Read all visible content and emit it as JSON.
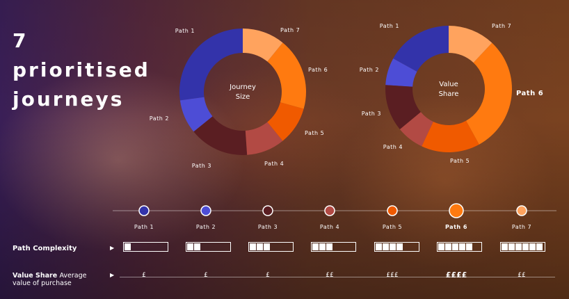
{
  "title": {
    "line1": "7",
    "line2": "prioritised",
    "line3": "journeys"
  },
  "colors": {
    "path1": "#3333aa",
    "path2": "#4d4dd6",
    "path3": "#5a1e22",
    "path4": "#b24a44",
    "path5": "#f05a00",
    "path6": "#ff7a10",
    "path7": "#ffa35e"
  },
  "chart_data": [
    {
      "type": "pie",
      "title_line1": "Journey",
      "title_line2": "Size",
      "labels": [
        "Path 1",
        "Path 2",
        "Path 3",
        "Path 4",
        "Path 5",
        "Path 6",
        "Path 7"
      ],
      "values": [
        25,
        8,
        14,
        9,
        9,
        17,
        10
      ]
    },
    {
      "type": "pie",
      "title_line1": "Value",
      "title_line2": "Share",
      "labels": [
        "Path 1",
        "Path 2",
        "Path 3",
        "Path 4",
        "Path 5",
        "Path 6",
        "Path 7"
      ],
      "values": [
        17,
        7,
        12,
        7,
        15,
        30,
        12
      ]
    }
  ],
  "timeline": {
    "paths": [
      {
        "label": "Path 1",
        "emphasis": false
      },
      {
        "label": "Path 2",
        "emphasis": false
      },
      {
        "label": "Path 3",
        "emphasis": false
      },
      {
        "label": "Path 4",
        "emphasis": false
      },
      {
        "label": "Path 5",
        "emphasis": false
      },
      {
        "label": "Path 6",
        "emphasis": true
      },
      {
        "label": "Path 7",
        "emphasis": false
      }
    ]
  },
  "complexity": {
    "label": "Path Complexity",
    "levels": [
      1,
      2,
      3,
      3,
      4,
      5,
      6
    ]
  },
  "value_share": {
    "label_bold": "Value Share",
    "label_rest_1": "Average",
    "label_rest_2": "value of purchase",
    "values": [
      "£",
      "£",
      "£",
      "££",
      "£££",
      "££££",
      "££"
    ]
  }
}
